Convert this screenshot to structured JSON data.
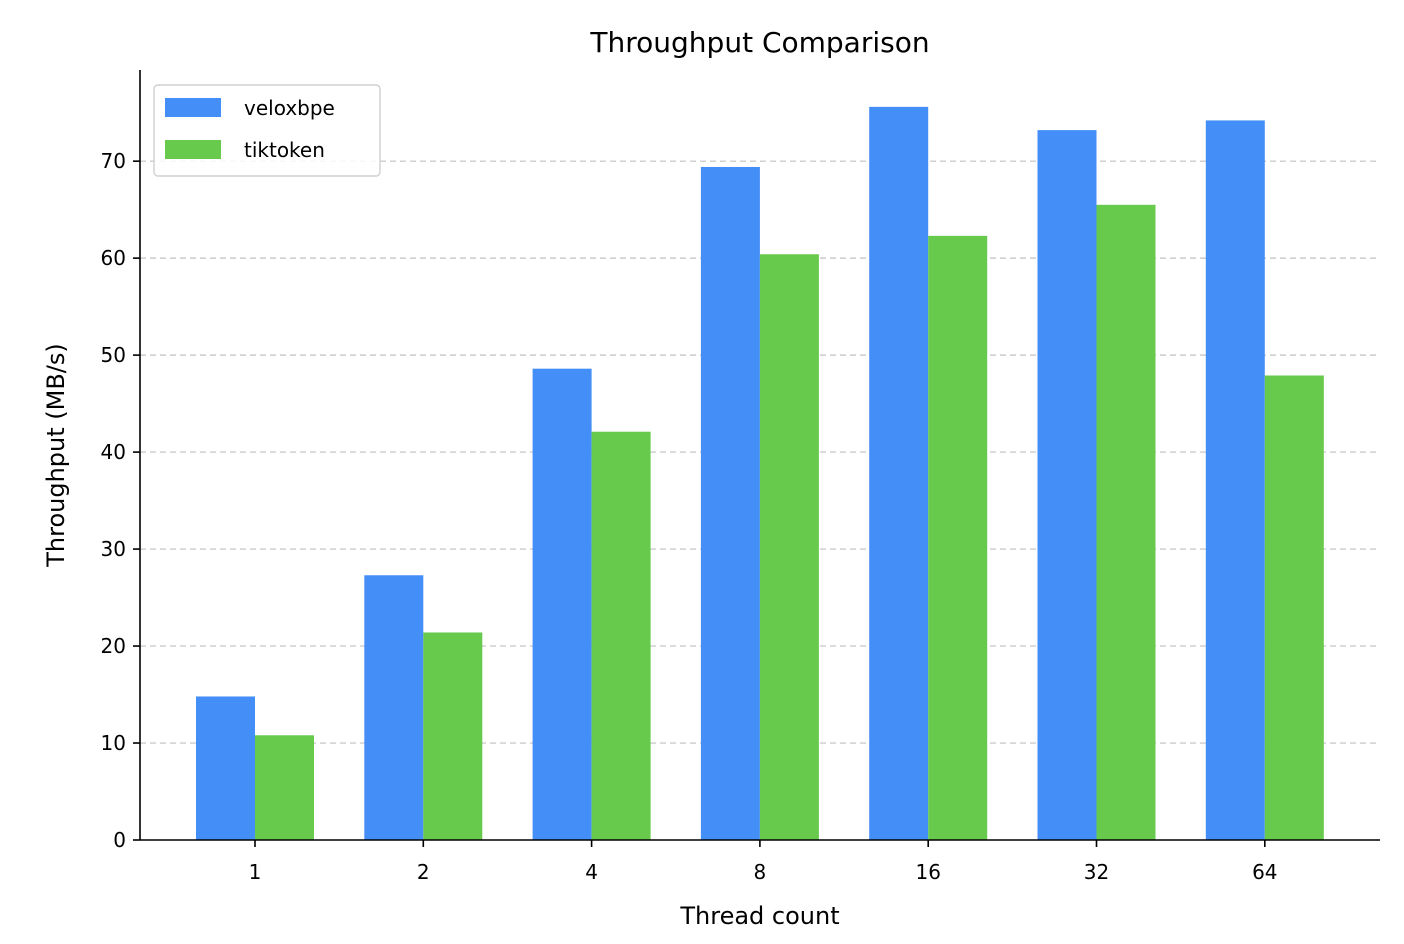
{
  "chart_data": {
    "type": "bar",
    "title": "Throughput Comparison",
    "xlabel": "Thread count",
    "ylabel": "Throughput (MB/s)",
    "categories": [
      "1",
      "2",
      "4",
      "8",
      "16",
      "32",
      "64"
    ],
    "series": [
      {
        "name": "veloxbpe",
        "color": "#448ef7",
        "values": [
          14.8,
          27.3,
          48.6,
          69.4,
          75.6,
          73.2,
          74.2
        ]
      },
      {
        "name": "tiktoken",
        "color": "#67ca4d",
        "values": [
          10.8,
          21.4,
          42.1,
          60.4,
          62.3,
          65.5,
          47.9
        ]
      }
    ],
    "ylim": [
      0,
      79.4
    ],
    "yticks": [
      0,
      10,
      20,
      30,
      40,
      50,
      60,
      70
    ],
    "grid": "y-dashed",
    "legend": "top-left"
  }
}
